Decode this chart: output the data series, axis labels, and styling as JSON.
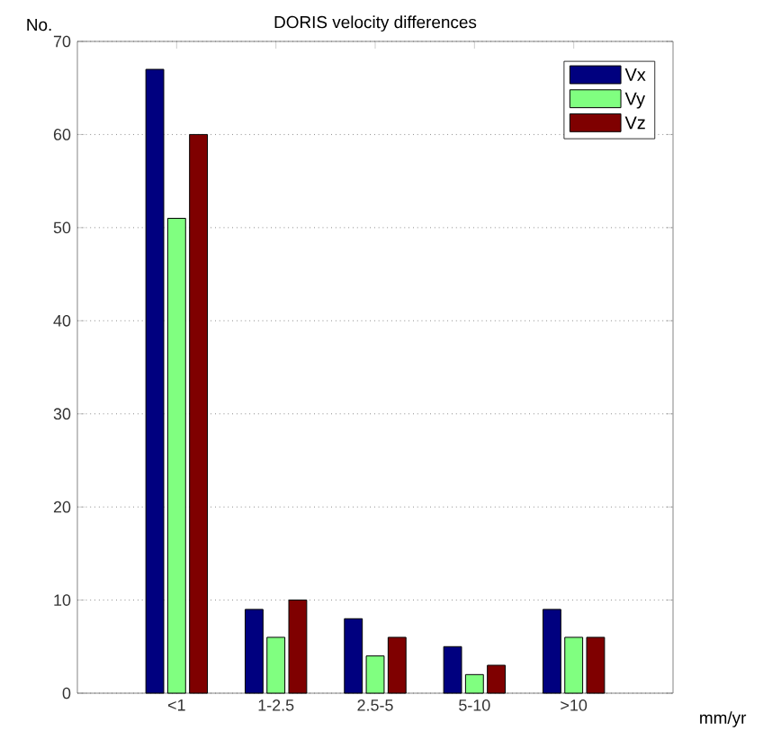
{
  "chart_data": {
    "type": "bar",
    "title": "DORIS velocity differences",
    "ylabel": "No.",
    "xlabel": "mm/yr",
    "categories": [
      "<1",
      "1-2.5",
      "2.5-5",
      "5-10",
      ">10"
    ],
    "series": [
      {
        "name": "Vx",
        "color": "#00007f",
        "values": [
          67,
          9,
          8,
          5,
          9
        ]
      },
      {
        "name": "Vy",
        "color": "#80ff80",
        "values": [
          51,
          6,
          4,
          2,
          6
        ]
      },
      {
        "name": "Vz",
        "color": "#7f0000",
        "values": [
          60,
          10,
          6,
          3,
          6
        ]
      }
    ],
    "ylim": [
      0,
      70
    ],
    "yticks": [
      0,
      10,
      20,
      30,
      40,
      50,
      60,
      70
    ],
    "grid": "y",
    "legend": "top right"
  }
}
